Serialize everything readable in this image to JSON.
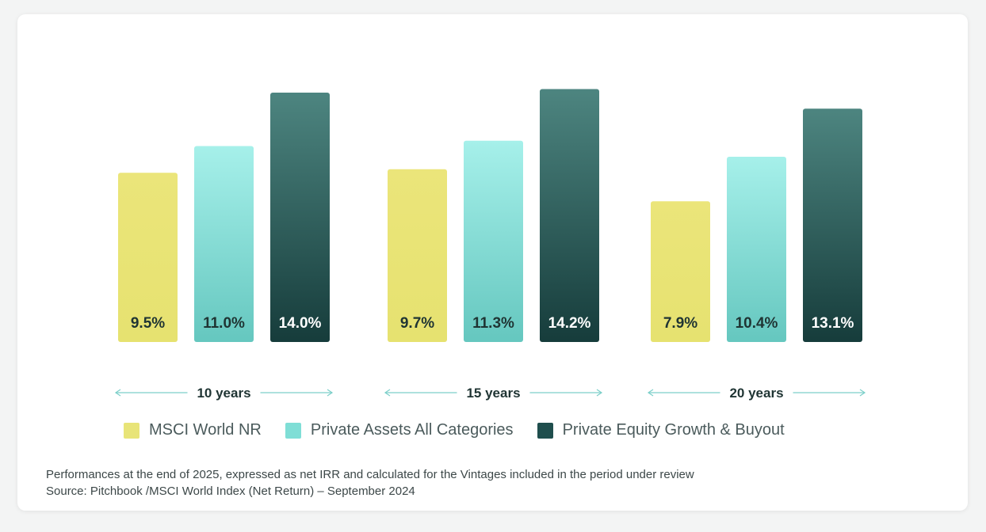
{
  "chart_data": {
    "type": "bar",
    "categories": [
      "10 years",
      "15 years",
      "20 years"
    ],
    "series": [
      {
        "name": "MSCI World NR",
        "values": [
          9.5,
          9.7,
          7.9
        ],
        "labels": [
          "9.5%",
          "9.7%",
          "7.9%"
        ],
        "color": "#e8e478"
      },
      {
        "name": "Private Assets All Categories",
        "values": [
          11.0,
          11.3,
          10.4
        ],
        "labels": [
          "11.0%",
          "11.3%",
          "10.4%"
        ],
        "color": "#7fded6"
      },
      {
        "name": "Private Equity Growth & Buyout",
        "values": [
          14.0,
          14.2,
          13.1
        ],
        "labels": [
          "14.0%",
          "14.2%",
          "13.1%"
        ],
        "color": "#2c5e5c"
      }
    ],
    "legend_position": "bottom",
    "grid": false
  },
  "footnote": {
    "line1": "Performances at the end of 2025, expressed as net IRR and calculated for the Vintages included in the period under review",
    "line2": "Source: Pitchbook /MSCI World Index (Net Return) – September 2024"
  }
}
